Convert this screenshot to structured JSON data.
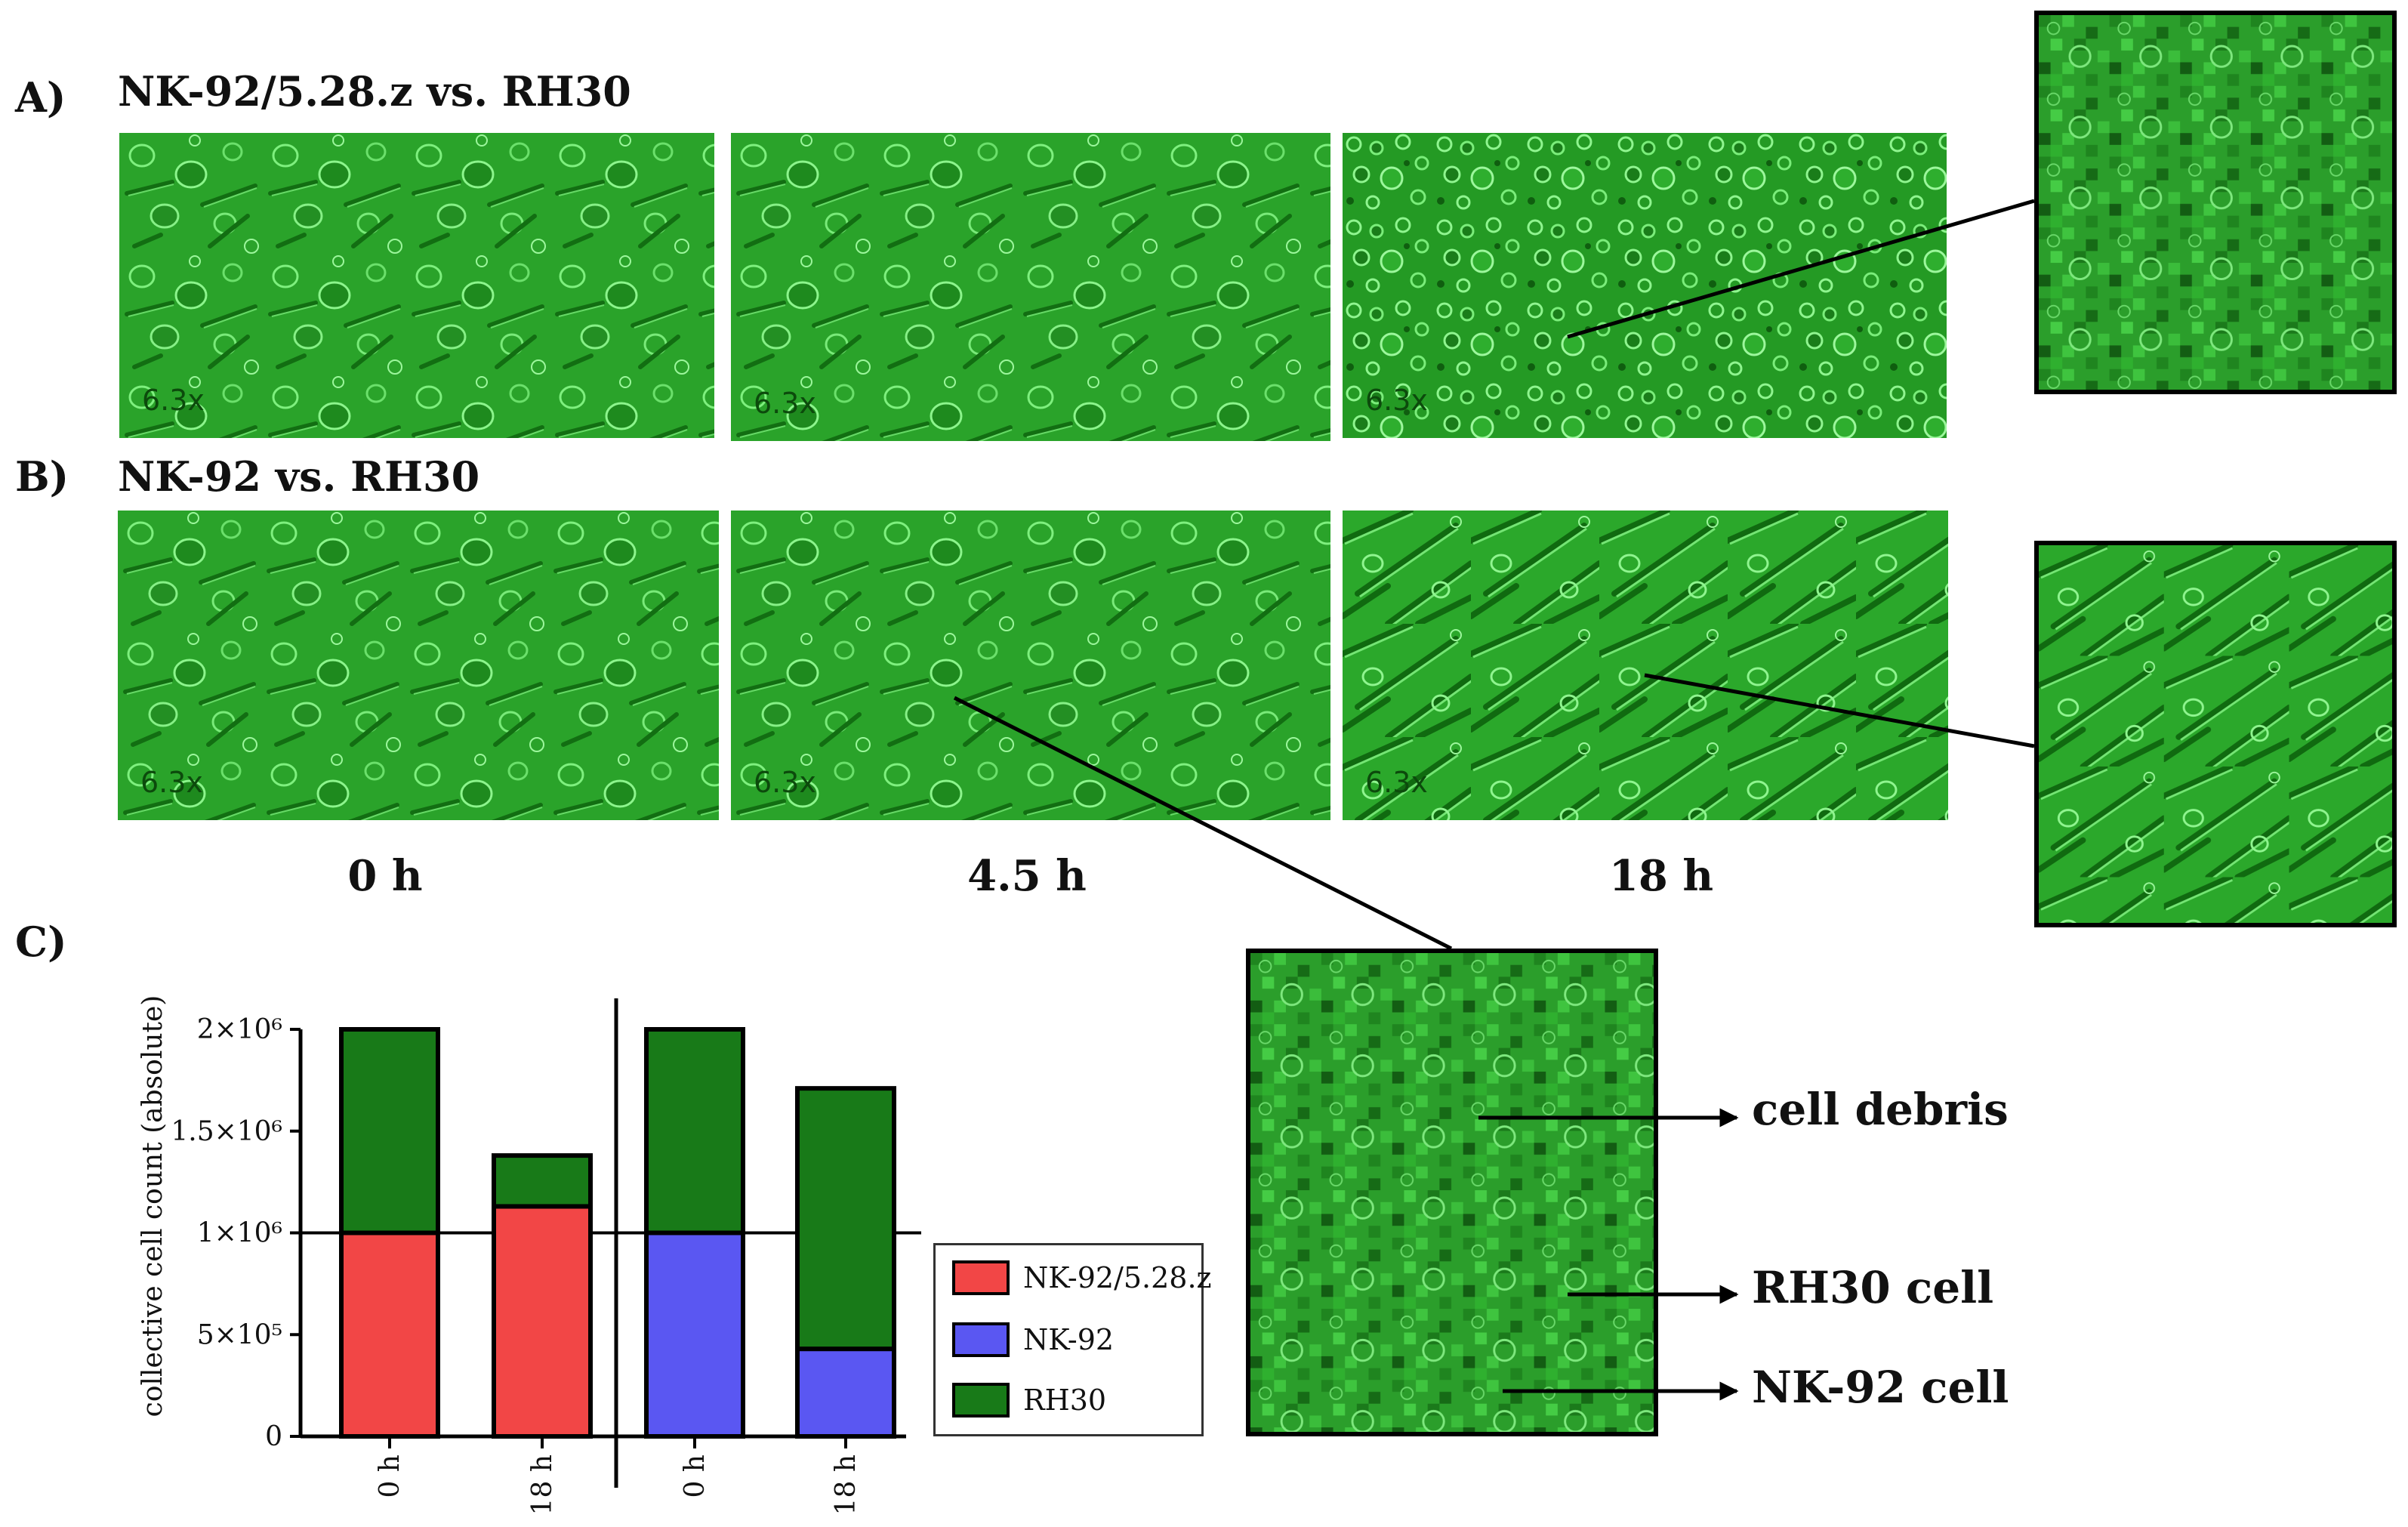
{
  "colors": {
    "car_nk": "#f24646",
    "nk": "#5a57f2",
    "rh30": "#187a18",
    "tissue": "#2fa62f"
  },
  "panels": {
    "a": {
      "label": "A)",
      "title": "NK-92/5.28.z vs. RH30",
      "magnifications": [
        "6.3x",
        "6.3x",
        "6.3x"
      ]
    },
    "b": {
      "label": "B)",
      "title": "NK-92 vs. RH30",
      "magnifications": [
        "6.3x",
        "6.3x",
        "6.3x"
      ]
    },
    "c": {
      "label": "C)"
    }
  },
  "timepoints": [
    "0 h",
    "4.5 h",
    "18 h"
  ],
  "annotations": {
    "debris": "cell debris",
    "rh30": "RH30 cell",
    "nk92": "NK-92 cell"
  },
  "chart_data": {
    "type": "bar",
    "stacked": true,
    "ylabel": "collective cell count (absolute)",
    "ylim": [
      0,
      2000000
    ],
    "yticks": [
      {
        "value": 0,
        "label": "0"
      },
      {
        "value": 500000,
        "label": "5×10⁵"
      },
      {
        "value": 1000000,
        "label": "1×10⁶"
      },
      {
        "value": 1500000,
        "label": "1.5×10⁶"
      },
      {
        "value": 2000000,
        "label": "2×10⁶"
      }
    ],
    "reference_line": 1000000,
    "groups": [
      {
        "categories": [
          "0 h",
          "18 h"
        ],
        "series": [
          {
            "name": "NK-92/5.28.z",
            "values": [
              1000000,
              1130000
            ]
          },
          {
            "name": "RH30",
            "values": [
              1000000,
              250000
            ]
          }
        ]
      },
      {
        "categories": [
          "0 h",
          "18 h"
        ],
        "series": [
          {
            "name": "NK-92",
            "values": [
              1000000,
              430000
            ]
          },
          {
            "name": "RH30",
            "values": [
              1000000,
              1280000
            ]
          }
        ]
      }
    ],
    "legend": {
      "position": "right",
      "entries": [
        "NK-92/5.28.z",
        "NK-92",
        "RH30"
      ]
    }
  }
}
